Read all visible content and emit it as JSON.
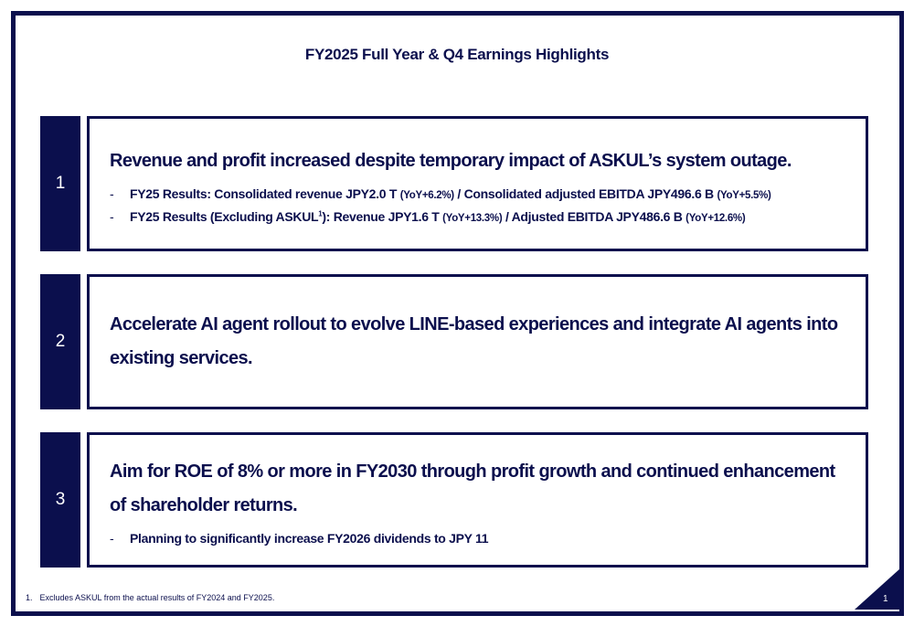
{
  "header": {
    "title": "FY2025 Full Year & Q4 Earnings Highlights"
  },
  "items": [
    {
      "number": "1",
      "heading": "Revenue and profit increased despite temporary impact of ASKUL’s system outage.",
      "bullets": [
        {
          "marker": "-",
          "parts": [
            "FY25 Results: Consolidated revenue JPY2.0 T",
            "(YoY+6.2%)",
            "/ Consolidated adjusted EBITDA JPY496.6 B",
            "(YoY+5.5%)"
          ]
        },
        {
          "marker": "-",
          "parts": [
            "FY25 Results (Excluding ASKUL",
            "1",
            "): Revenue JPY1.6 T",
            "(YoY+13.3%)",
            "/ Adjusted EBITDA JPY486.6 B",
            "(YoY+12.6%)"
          ]
        }
      ]
    },
    {
      "number": "2",
      "heading": "Accelerate AI agent rollout to evolve LINE-based experiences and integrate AI agents into existing services.",
      "bullets": []
    },
    {
      "number": "3",
      "heading": "Aim for ROE of 8% or more in FY2030 through profit growth and continued enhancement of shareholder returns.",
      "bullets": [
        {
          "marker": "-",
          "parts": [
            "Planning to significantly increase FY2026 dividends to JPY 11"
          ]
        }
      ]
    }
  ],
  "footnote": {
    "marker": "1.",
    "text": "Excludes ASKUL from the actual results of FY2024 and FY2025."
  },
  "page_number": "1"
}
